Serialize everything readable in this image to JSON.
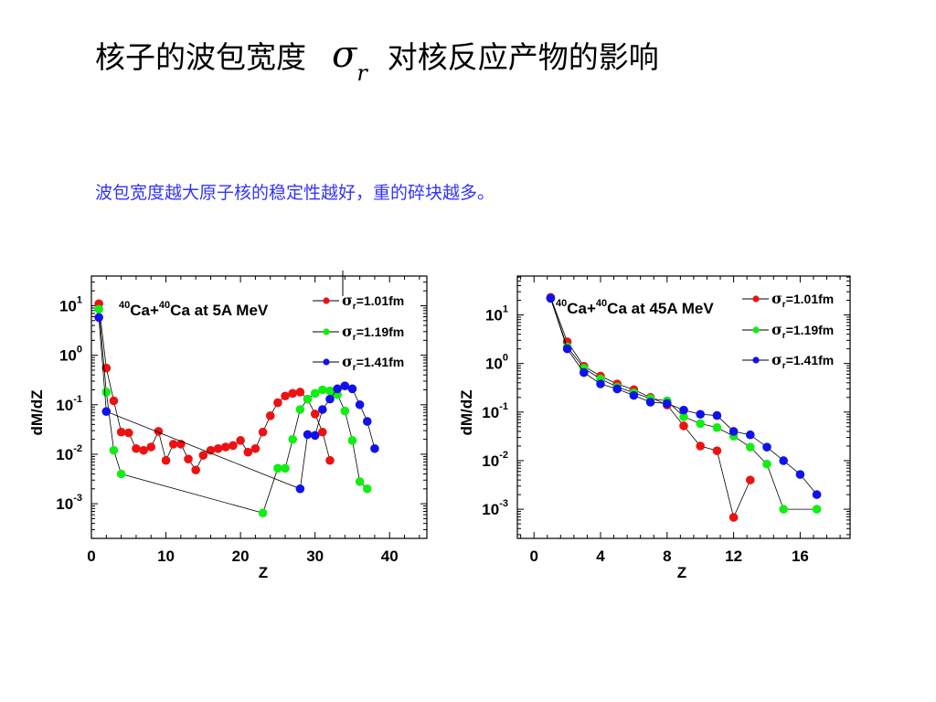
{
  "page": {
    "title_pre": "核子的波包宽度",
    "title_symbol": "σ",
    "title_symbol_sub": "r",
    "title_post": "对核反应产物的影响",
    "subtitle": "波包宽度越大原子核的稳定性越好，重的碎块越多。"
  },
  "chart_data": [
    {
      "type": "scatter",
      "annotation": "40Ca+40Ca at 5A MeV",
      "annotation_parts": {
        "mass1": "40",
        "el1": "Ca+",
        "mass2": "40",
        "el2": "Ca at 5A MeV"
      },
      "xlabel": "Z",
      "ylabel": "dM/dZ",
      "xlim": [
        0,
        45
      ],
      "ylim_log10": [
        -3.7,
        1.6
      ],
      "y_scale": "log",
      "xticks": [
        0,
        10,
        20,
        30,
        40
      ],
      "ytick_labels": [
        "10-3",
        "10-2",
        "10-1",
        "100",
        "101"
      ],
      "legend": "top-right",
      "series": [
        {
          "name": "σr=1.01fm",
          "name_sym": "σ",
          "name_sub": "r",
          "name_rest": "=1.01fm",
          "color": "#ee1111",
          "x": [
            1,
            2,
            3,
            4,
            5,
            6,
            7,
            8,
            9,
            10,
            11,
            12,
            13,
            14,
            15,
            16,
            17,
            18,
            19,
            20,
            21,
            22,
            23,
            24,
            25,
            26,
            27,
            28,
            29,
            30,
            31,
            32
          ],
          "y": [
            11,
            0.55,
            0.12,
            0.028,
            0.027,
            0.013,
            0.012,
            0.014,
            0.029,
            0.0075,
            0.016,
            0.016,
            0.008,
            0.0048,
            0.0095,
            0.012,
            0.013,
            0.014,
            0.015,
            0.019,
            0.011,
            0.013,
            0.028,
            0.06,
            0.11,
            0.15,
            0.17,
            0.18,
            0.13,
            0.065,
            0.028,
            0.0075
          ]
        },
        {
          "name": "σr=1.19fm",
          "name_sym": "σ",
          "name_sub": "r",
          "name_rest": "=1.19fm",
          "color": "#11ee11",
          "x": [
            1,
            2,
            3,
            4,
            23,
            25,
            26,
            27,
            28,
            29,
            30,
            31,
            32,
            33,
            34,
            35,
            36,
            37
          ],
          "y": [
            8.5,
            0.18,
            0.012,
            0.004,
            0.00065,
            0.0052,
            0.0052,
            0.02,
            0.08,
            0.13,
            0.17,
            0.2,
            0.19,
            0.16,
            0.075,
            0.019,
            0.0028,
            0.002
          ]
        },
        {
          "name": "σr=1.41fm",
          "name_sym": "σ",
          "name_sub": "r",
          "name_rest": "=1.41fm",
          "color": "#1111ee",
          "x": [
            1,
            2,
            28,
            29,
            30,
            31,
            32,
            33,
            34,
            35,
            36,
            37,
            38
          ],
          "y": [
            5.8,
            0.073,
            0.002,
            0.025,
            0.024,
            0.08,
            0.13,
            0.21,
            0.24,
            0.21,
            0.1,
            0.046,
            0.013
          ]
        }
      ]
    },
    {
      "type": "scatter",
      "annotation": "40Ca+40Ca at 45A MeV",
      "annotation_parts": {
        "mass1": "40",
        "el1": "Ca+",
        "mass2": "40",
        "el2": "Ca at 45A MeV"
      },
      "xlabel": "Z",
      "ylabel": "dM/dZ",
      "xlim": [
        -1,
        19
      ],
      "ylim_log10": [
        -3.6,
        1.8
      ],
      "y_scale": "log",
      "xticks": [
        0,
        4,
        8,
        12,
        16
      ],
      "ytick_labels": [
        "10-3",
        "10-2",
        "10-1",
        "100",
        "101"
      ],
      "legend": "top-right",
      "series": [
        {
          "name": "σr=1.01fm",
          "name_sym": "σ",
          "name_sub": "r",
          "name_rest": "=1.01fm",
          "color": "#ee1111",
          "x": [
            1,
            2,
            3,
            4,
            5,
            6,
            7,
            8,
            9,
            10,
            11,
            12,
            13
          ],
          "y": [
            23,
            2.8,
            0.88,
            0.55,
            0.38,
            0.29,
            0.2,
            0.14,
            0.052,
            0.02,
            0.016,
            0.00068,
            0.004
          ]
        },
        {
          "name": "σr=1.19fm",
          "name_sym": "σ",
          "name_sub": "r",
          "name_rest": "=1.19fm",
          "color": "#11ee11",
          "x": [
            1,
            2,
            3,
            4,
            5,
            6,
            7,
            8,
            9,
            10,
            11,
            12,
            13,
            14,
            15,
            17
          ],
          "y": [
            22,
            2.2,
            0.8,
            0.48,
            0.33,
            0.25,
            0.19,
            0.17,
            0.08,
            0.058,
            0.048,
            0.032,
            0.019,
            0.0085,
            0.001,
            0.001
          ]
        },
        {
          "name": "σr=1.41fm",
          "name_sym": "σ",
          "name_sub": "r",
          "name_rest": "=1.41fm",
          "color": "#1111ee",
          "x": [
            1,
            2,
            3,
            4,
            5,
            6,
            7,
            8,
            9,
            10,
            11,
            12,
            13,
            14,
            15,
            16,
            17
          ],
          "y": [
            22,
            2.0,
            0.65,
            0.38,
            0.3,
            0.22,
            0.16,
            0.15,
            0.11,
            0.09,
            0.085,
            0.04,
            0.034,
            0.019,
            0.01,
            0.0052,
            0.002
          ]
        }
      ]
    }
  ]
}
